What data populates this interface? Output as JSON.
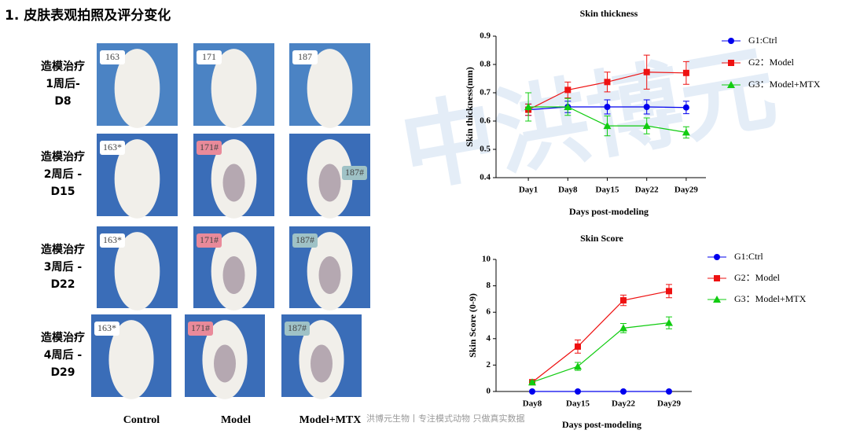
{
  "header": {
    "title": "1. 皮肤表观拍照及评分变化"
  },
  "photos": {
    "columns": [
      "Control",
      "Model",
      "Model+MTX"
    ],
    "rows": [
      {
        "lines": [
          "造模治疗",
          "1周后-",
          "D8"
        ],
        "tags": [
          "163",
          "171",
          "187"
        ]
      },
      {
        "lines": [
          "造模治疗",
          "2周后 -",
          "D15"
        ],
        "tags": [
          "163*",
          "171#",
          "187#"
        ]
      },
      {
        "lines": [
          "造模治疗",
          "3周后 -",
          "D22"
        ],
        "tags": [
          "163*",
          "171#",
          "187#"
        ]
      },
      {
        "lines": [
          "造模治疗",
          "4周后 -",
          "D29"
        ],
        "tags": [
          "163*",
          "171#",
          "187#"
        ]
      }
    ]
  },
  "watermark": "中洪博元",
  "footer_text": "洪博元生物丨专注模式动物 只做真实数据",
  "chart_data": [
    {
      "type": "line",
      "title": "Skin thickness",
      "x_label": "Days post-modeling",
      "y_label": "Skin thickness(mm)",
      "categories": [
        "Day1",
        "Day8",
        "Day15",
        "Day22",
        "Day29"
      ],
      "ylim": [
        0.4,
        0.9
      ],
      "yticks": [
        0.4,
        0.5,
        0.6,
        0.7,
        0.8,
        0.9
      ],
      "series": [
        {
          "name": "G1:Ctrl",
          "color": "#0000ee",
          "marker": "circle",
          "values": [
            0.64,
            0.65,
            0.65,
            0.65,
            0.648
          ],
          "errors": [
            0.02,
            0.02,
            0.025,
            0.025,
            0.022
          ]
        },
        {
          "name": "G2：Model",
          "color": "#ee1111",
          "marker": "square",
          "values": [
            0.64,
            0.71,
            0.738,
            0.773,
            0.77
          ],
          "errors": [
            0.02,
            0.028,
            0.035,
            0.06,
            0.04
          ]
        },
        {
          "name": "G3：Model+MTX",
          "color": "#11cc11",
          "marker": "triangle",
          "values": [
            0.65,
            0.65,
            0.583,
            0.583,
            0.56
          ],
          "errors": [
            0.05,
            0.03,
            0.035,
            0.028,
            0.02
          ]
        }
      ]
    },
    {
      "type": "line",
      "title": "Skin Score",
      "x_label": "Days post-modeling",
      "y_label": "Skin Score (0-9)",
      "categories": [
        "Day8",
        "Day15",
        "Day22",
        "Day29"
      ],
      "ylim": [
        0,
        10
      ],
      "yticks": [
        0,
        2,
        4,
        6,
        8,
        10
      ],
      "series": [
        {
          "name": "G1:Ctrl",
          "color": "#0000ee",
          "marker": "circle",
          "values": [
            0,
            0,
            0,
            0
          ],
          "errors": [
            0,
            0,
            0,
            0
          ]
        },
        {
          "name": "G2：Model",
          "color": "#ee1111",
          "marker": "square",
          "values": [
            0.7,
            3.4,
            6.9,
            7.6
          ],
          "errors": [
            0.1,
            0.5,
            0.4,
            0.5
          ]
        },
        {
          "name": "G3：Model+MTX",
          "color": "#11cc11",
          "marker": "triangle",
          "values": [
            0.7,
            1.9,
            4.8,
            5.2
          ],
          "errors": [
            0.1,
            0.3,
            0.35,
            0.45
          ]
        }
      ]
    }
  ]
}
